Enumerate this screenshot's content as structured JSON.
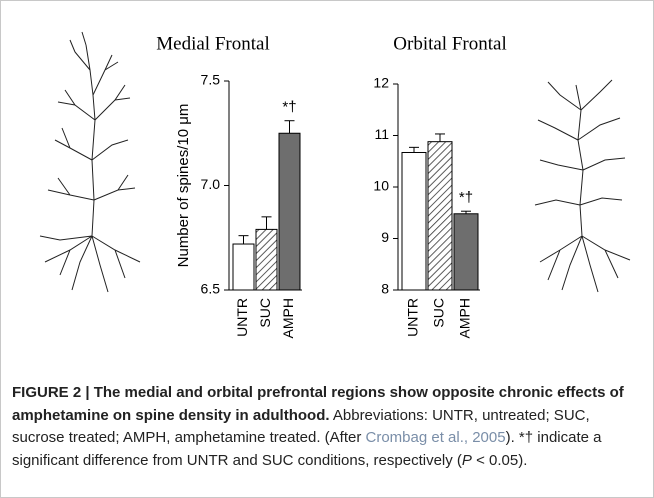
{
  "chart_data": [
    {
      "type": "bar",
      "title": "Medial Frontal",
      "y_label": "Number of spines/10 μm",
      "categories": [
        "UNTR",
        "SUC",
        "AMPH"
      ],
      "values": [
        6.72,
        6.79,
        7.25
      ],
      "errors": [
        0.04,
        0.06,
        0.06
      ],
      "colors": [
        "#ffffff",
        "#ffffff",
        "#6e6e6e"
      ],
      "hatched": [
        false,
        true,
        false
      ],
      "annotation": "*†",
      "annotated_index": 2,
      "ylim": [
        6.5,
        7.5
      ],
      "yticks": [
        6.5,
        {
          "value": 7,
          "label": "7.0"
        },
        7.5
      ]
    },
    {
      "type": "bar",
      "title": "Orbital Frontal",
      "categories": [
        "UNTR",
        "SUC",
        "AMPH"
      ],
      "values": [
        10.67,
        10.88,
        9.48
      ],
      "errors": [
        0.1,
        0.15,
        0.05
      ],
      "colors": [
        "#ffffff",
        "#ffffff",
        "#6e6e6e"
      ],
      "hatched": [
        false,
        true,
        false
      ],
      "annotation": "*†",
      "annotated_index": 2,
      "ylim": [
        8,
        12
      ],
      "yticks": [
        8,
        9,
        10,
        11,
        12
      ]
    }
  ],
  "caption": {
    "title": "FIGURE 2 | The medial and orbital prefrontal regions show opposite chronic effects of amphetamine on spine density in adulthood.",
    "body_start": "Abbreviations: UNTR, untreated; SUC, sucrose treated; AMPH, amphetamine treated. (After ",
    "citation": "Crombag et al., 2005",
    "body_middle": "). *† indicate a significant difference from UNTR and SUC conditions, respectively (",
    "p_symbol": "P",
    "body_end": " < 0.05)."
  }
}
